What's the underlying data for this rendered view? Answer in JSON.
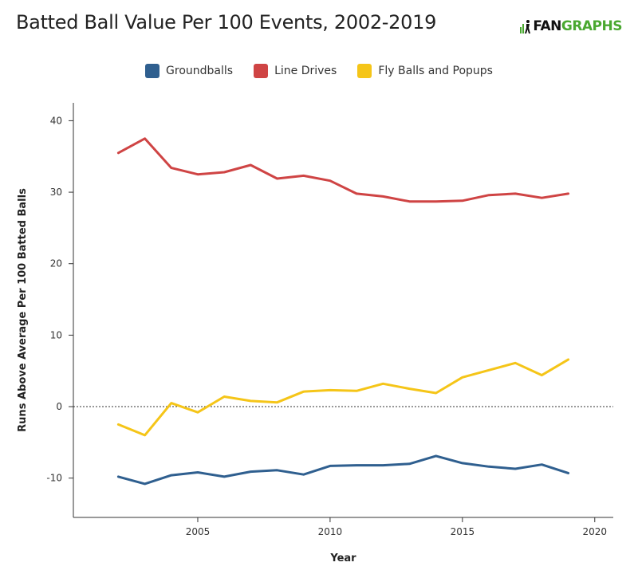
{
  "header": {
    "title": "Batted Ball Value Per 100 Events, 2002-2019",
    "logo_fan": "FAN",
    "logo_graphs": "GRAPHS"
  },
  "colors": {
    "groundballs": "#2f5f8f",
    "line_drives": "#cf4444",
    "fly_balls": "#f5c518"
  },
  "chart_data": {
    "type": "line",
    "title": "Batted Ball Value Per 100 Events, 2002-2019",
    "xlabel": "Year",
    "ylabel": "Runs Above Average Per 100 Batted Balls",
    "xlim": [
      2000.3,
      2020.7
    ],
    "ylim": [
      -15.5,
      42.5
    ],
    "xticks": [
      2005,
      2010,
      2015,
      2020
    ],
    "yticks": [
      -10,
      0,
      10,
      20,
      30,
      40
    ],
    "reference_line": 0,
    "legend_position": "top-center",
    "grid": false,
    "x": [
      2002,
      2003,
      2004,
      2005,
      2006,
      2007,
      2008,
      2009,
      2010,
      2011,
      2012,
      2013,
      2014,
      2015,
      2016,
      2017,
      2018,
      2019
    ],
    "series": [
      {
        "name": "Groundballs",
        "color": "#2f5f8f",
        "values": [
          -9.8,
          -10.8,
          -9.6,
          -9.2,
          -9.8,
          -9.1,
          -8.9,
          -9.5,
          -8.3,
          -8.2,
          -8.2,
          -8.0,
          -6.9,
          -7.9,
          -8.4,
          -8.7,
          -8.1,
          -9.3
        ]
      },
      {
        "name": "Line Drives",
        "color": "#cf4444",
        "values": [
          35.5,
          37.5,
          33.4,
          32.5,
          32.8,
          33.8,
          31.9,
          32.3,
          31.6,
          29.8,
          29.4,
          28.7,
          28.7,
          28.8,
          29.6,
          29.8,
          29.2,
          29.8
        ]
      },
      {
        "name": "Fly Balls and Popups",
        "color": "#f5c518",
        "values": [
          -2.5,
          -4.0,
          0.5,
          -0.8,
          1.4,
          0.8,
          0.6,
          2.1,
          2.3,
          2.2,
          3.2,
          2.5,
          1.9,
          4.1,
          5.1,
          6.1,
          4.4,
          6.6
        ]
      }
    ]
  }
}
